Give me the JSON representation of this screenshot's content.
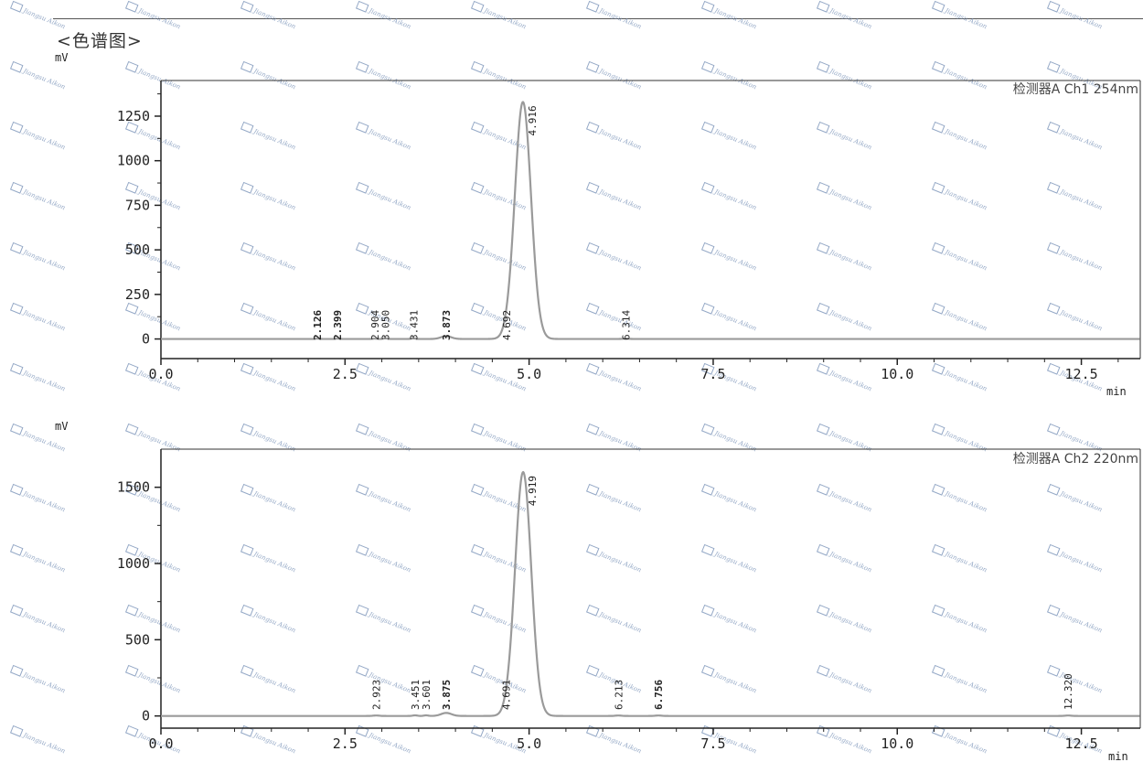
{
  "heading": "<色谱图>",
  "watermark": "Jiangsu Aikon",
  "colors": {
    "trace": "#9a9a9a",
    "axis": "#222222",
    "watermark": "#7a93b8"
  },
  "chart_data": [
    {
      "type": "line",
      "detector_label": "检测器A Ch1 254nm",
      "y_unit": "mV",
      "x_unit": "min",
      "xlim": [
        0,
        13.3
      ],
      "ylim": [
        -110,
        1450
      ],
      "x_ticks": [
        0,
        2.5,
        5,
        7.5,
        10,
        12.5
      ],
      "x_tick_labels": [
        "0.0",
        "2.5",
        "5.0",
        "7.5",
        "10.0",
        "12.5"
      ],
      "y_ticks": [
        0,
        250,
        500,
        750,
        1000,
        1250
      ],
      "y_tick_labels": [
        "0",
        "250",
        "500",
        "750",
        "1000",
        "1250"
      ],
      "peaks": [
        {
          "rt": 2.126,
          "label": "2.126",
          "height": 2,
          "width": 0.03,
          "bold": true
        },
        {
          "rt": 2.399,
          "label": "2.399",
          "height": 2,
          "width": 0.03,
          "bold": true
        },
        {
          "rt": 2.904,
          "label": "2.904",
          "height": 2,
          "width": 0.03,
          "bold": false
        },
        {
          "rt": 3.05,
          "label": "3.050",
          "height": 3,
          "width": 0.03,
          "bold": false
        },
        {
          "rt": 3.431,
          "label": "3.431",
          "height": 3,
          "width": 0.03,
          "bold": false
        },
        {
          "rt": 3.873,
          "label": "3.873",
          "height": 16,
          "width": 0.07,
          "bold": true
        },
        {
          "rt": 4.692,
          "label": "4.692",
          "height": 6,
          "width": 0.04,
          "bold": false
        },
        {
          "rt": 4.916,
          "label": "4.916",
          "height": 1330,
          "width": 0.11,
          "bold": false
        },
        {
          "rt": 6.314,
          "label": "6.314",
          "height": 2,
          "width": 0.04,
          "bold": false
        }
      ]
    },
    {
      "type": "line",
      "detector_label": "检测器A Ch2 220nm",
      "y_unit": "mV",
      "x_unit": "min",
      "xlim": [
        0,
        13.3
      ],
      "ylim": [
        -80,
        1750
      ],
      "x_ticks": [
        0,
        2.5,
        5,
        7.5,
        10,
        12.5
      ],
      "x_tick_labels": [
        "0.0",
        "2.5",
        "5.0",
        "7.5",
        "10.0",
        "12.5"
      ],
      "y_ticks": [
        0,
        500,
        1000,
        1500
      ],
      "y_tick_labels": [
        "0",
        "500",
        "1000",
        "1500"
      ],
      "peaks": [
        {
          "rt": 2.923,
          "label": "2.923",
          "height": 3,
          "width": 0.04,
          "bold": false
        },
        {
          "rt": 3.451,
          "label": "3.451",
          "height": 4,
          "width": 0.03,
          "bold": false
        },
        {
          "rt": 3.601,
          "label": "3.601",
          "height": 4,
          "width": 0.03,
          "bold": false
        },
        {
          "rt": 3.875,
          "label": "3.875",
          "height": 20,
          "width": 0.07,
          "bold": true
        },
        {
          "rt": 4.691,
          "label": "4.691",
          "height": 8,
          "width": 0.04,
          "bold": false
        },
        {
          "rt": 4.919,
          "label": "4.919",
          "height": 1600,
          "width": 0.11,
          "bold": false
        },
        {
          "rt": 6.213,
          "label": "6.213",
          "height": 3,
          "width": 0.04,
          "bold": false
        },
        {
          "rt": 6.756,
          "label": "6.756",
          "height": 3,
          "width": 0.04,
          "bold": true
        },
        {
          "rt": 12.32,
          "label": "12.320",
          "height": 3,
          "width": 0.04,
          "bold": false
        }
      ]
    }
  ]
}
